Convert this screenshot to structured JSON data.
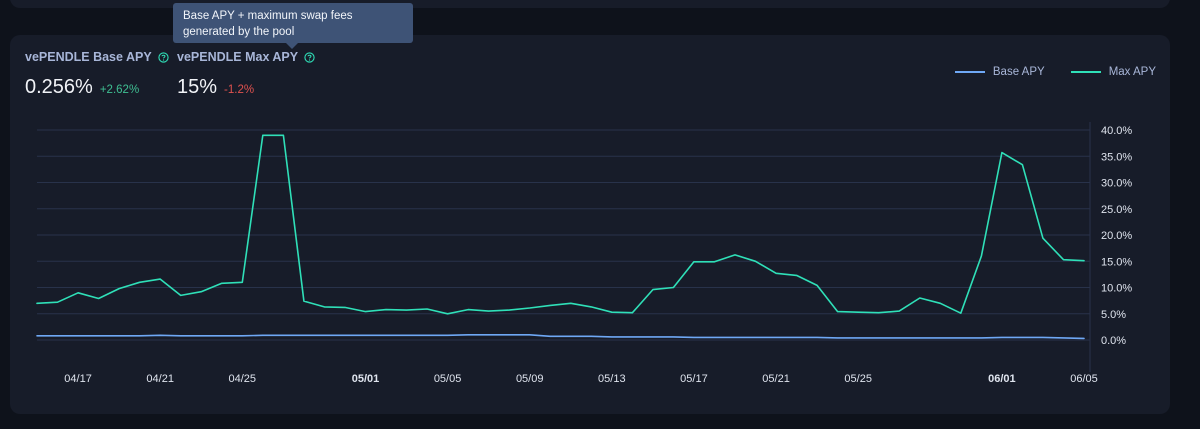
{
  "colors": {
    "base": "#6fa8f5",
    "max": "#2fe0b8",
    "grid": "#28324a",
    "axis_text": "#dfe4ee",
    "positive": "#3fbf92",
    "negative": "#e0524f"
  },
  "stats": {
    "base": {
      "label": "vePENDLE Base APY",
      "value": "0.256%",
      "change": "+2.62%",
      "icon": "help-circle-icon"
    },
    "max": {
      "label": "vePENDLE Max APY",
      "value": "15%",
      "change": "-1.2%",
      "icon": "help-circle-icon"
    }
  },
  "tooltip": {
    "text": "Base APY + maximum swap fees generated by the pool"
  },
  "chart_data": {
    "type": "line",
    "x": [
      "04/15",
      "04/16",
      "04/17",
      "04/18",
      "04/19",
      "04/20",
      "04/21",
      "04/22",
      "04/23",
      "04/24",
      "04/25",
      "04/26",
      "04/27",
      "04/28",
      "04/29",
      "04/30",
      "05/01",
      "05/02",
      "05/03",
      "05/04",
      "05/05",
      "05/06",
      "05/07",
      "05/08",
      "05/09",
      "05/10",
      "05/11",
      "05/12",
      "05/13",
      "05/14",
      "05/15",
      "05/16",
      "05/17",
      "05/18",
      "05/19",
      "05/20",
      "05/21",
      "05/22",
      "05/23",
      "05/24",
      "05/25",
      "05/26",
      "05/27",
      "05/28",
      "05/29",
      "05/30",
      "05/31",
      "06/01",
      "06/02",
      "06/03",
      "06/04",
      "06/05"
    ],
    "series": [
      {
        "name": "Base APY",
        "values": [
          0.8,
          0.8,
          0.8,
          0.8,
          0.8,
          0.8,
          0.9,
          0.8,
          0.8,
          0.8,
          0.8,
          0.9,
          0.9,
          0.9,
          0.9,
          0.9,
          0.9,
          0.9,
          0.9,
          0.9,
          0.9,
          1.0,
          1.0,
          1.0,
          1.0,
          0.7,
          0.7,
          0.7,
          0.6,
          0.6,
          0.6,
          0.6,
          0.5,
          0.5,
          0.5,
          0.5,
          0.5,
          0.5,
          0.5,
          0.4,
          0.4,
          0.4,
          0.4,
          0.4,
          0.4,
          0.4,
          0.4,
          0.5,
          0.5,
          0.5,
          0.4,
          0.3
        ]
      },
      {
        "name": "Max APY",
        "values": [
          7.0,
          7.2,
          9.0,
          7.9,
          9.8,
          11.0,
          11.6,
          8.5,
          9.2,
          10.8,
          11.0,
          39.0,
          39.0,
          7.4,
          6.3,
          6.2,
          5.4,
          5.8,
          5.7,
          5.9,
          5.0,
          5.8,
          5.5,
          5.7,
          6.1,
          6.6,
          7.0,
          6.3,
          5.3,
          5.2,
          9.6,
          10.0,
          14.9,
          14.9,
          16.2,
          15.0,
          12.7,
          12.3,
          10.4,
          5.4,
          5.3,
          5.2,
          5.5,
          8.0,
          7.0,
          5.1,
          16.0,
          35.7,
          33.4,
          19.4,
          15.3,
          15.1
        ]
      }
    ],
    "x_tick_labels": [
      "04/17",
      "04/21",
      "04/25",
      "05/01",
      "05/05",
      "05/09",
      "05/13",
      "05/17",
      "05/21",
      "05/25",
      "06/01",
      "06/05"
    ],
    "x_bold_ticks": [
      "05/01",
      "06/01"
    ],
    "y_tick_labels": [
      "0.0%",
      "5.0%",
      "10.0%",
      "15.0%",
      "20.0%",
      "25.0%",
      "30.0%",
      "35.0%",
      "40.0%"
    ],
    "ylim": [
      0,
      40
    ],
    "y_unit": "%",
    "grid": true,
    "legend": "top-right"
  }
}
